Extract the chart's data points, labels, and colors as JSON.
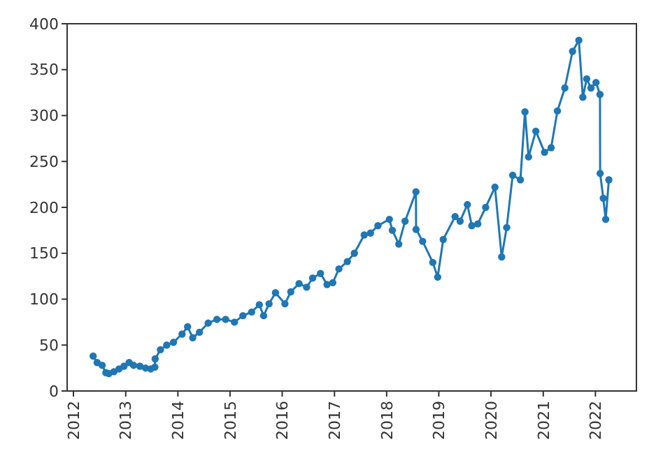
{
  "chart_data": {
    "type": "line",
    "marker": "circle",
    "line_style": "solid",
    "xlim": [
      "2011-11-18",
      "2022-10-15"
    ],
    "ylim": [
      0,
      400
    ],
    "xticks": [
      {
        "value": "2012-01-01",
        "label": "2012"
      },
      {
        "value": "2013-01-01",
        "label": "2013"
      },
      {
        "value": "2014-01-01",
        "label": "2014"
      },
      {
        "value": "2015-01-01",
        "label": "2015"
      },
      {
        "value": "2016-01-01",
        "label": "2016"
      },
      {
        "value": "2017-01-01",
        "label": "2017"
      },
      {
        "value": "2018-01-01",
        "label": "2018"
      },
      {
        "value": "2019-01-01",
        "label": "2019"
      },
      {
        "value": "2020-01-01",
        "label": "2020"
      },
      {
        "value": "2021-01-01",
        "label": "2021"
      },
      {
        "value": "2022-01-01",
        "label": "2022"
      }
    ],
    "yticks": [
      0,
      50,
      100,
      150,
      200,
      250,
      300,
      350,
      400
    ],
    "x": [
      "2012-05-18",
      "2012-06-15",
      "2012-07-20",
      "2012-08-15",
      "2012-09-05",
      "2012-10-10",
      "2012-11-15",
      "2012-12-20",
      "2013-01-25",
      "2013-02-25",
      "2013-04-10",
      "2013-05-20",
      "2013-06-25",
      "2013-07-24",
      "2013-07-26",
      "2013-09-01",
      "2013-10-15",
      "2013-12-01",
      "2014-01-30",
      "2014-03-10",
      "2014-04-15",
      "2014-06-01",
      "2014-08-01",
      "2014-10-01",
      "2014-12-01",
      "2015-02-01",
      "2015-04-01",
      "2015-06-01",
      "2015-07-25",
      "2015-08-24",
      "2015-10-01",
      "2015-11-15",
      "2016-01-20",
      "2016-03-01",
      "2016-04-28",
      "2016-06-20",
      "2016-08-01",
      "2016-09-25",
      "2016-11-10",
      "2016-12-20",
      "2017-02-01",
      "2017-04-01",
      "2017-05-20",
      "2017-07-28",
      "2017-09-10",
      "2017-11-01",
      "2018-01-20",
      "2018-02-10",
      "2018-03-27",
      "2018-05-10",
      "2018-07-25",
      "2018-07-26",
      "2018-09-10",
      "2018-11-20",
      "2018-12-24",
      "2019-02-01",
      "2019-04-25",
      "2019-05-30",
      "2019-07-20",
      "2019-08-20",
      "2019-10-01",
      "2019-11-25",
      "2020-01-29",
      "2020-03-16",
      "2020-04-20",
      "2020-06-01",
      "2020-07-25",
      "2020-08-26",
      "2020-09-20",
      "2020-11-10",
      "2021-01-10",
      "2021-02-25",
      "2021-04-10",
      "2021-06-01",
      "2021-07-25",
      "2021-09-07",
      "2021-10-05",
      "2021-11-01",
      "2021-12-01",
      "2022-01-05",
      "2022-02-02",
      "2022-02-03",
      "2022-02-25",
      "2022-03-14",
      "2022-04-05"
    ],
    "series": [
      {
        "color": "#1f77b4",
        "values": [
          38,
          31,
          28,
          20,
          19,
          21,
          24,
          27,
          31,
          28,
          27,
          25,
          24,
          26,
          35,
          45,
          50,
          53,
          62,
          70,
          58,
          64,
          74,
          78,
          78,
          75,
          82,
          86,
          94,
          82,
          95,
          107,
          95,
          108,
          117,
          113,
          123,
          128,
          116,
          118,
          133,
          141,
          150,
          170,
          172,
          180,
          187,
          175,
          160,
          185,
          217,
          176,
          163,
          140,
          124,
          165,
          190,
          185,
          203,
          180,
          182,
          200,
          222,
          146,
          178,
          235,
          230,
          304,
          255,
          283,
          260,
          265,
          305,
          330,
          370,
          382,
          320,
          340,
          330,
          336,
          323,
          237,
          210,
          187,
          230
        ]
      }
    ]
  }
}
